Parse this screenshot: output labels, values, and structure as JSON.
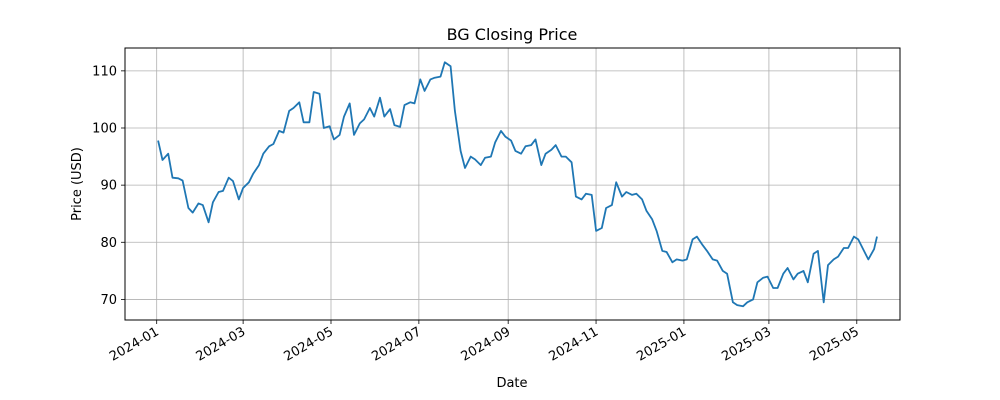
{
  "chart_data": {
    "type": "line",
    "title": "BG Closing Price",
    "xlabel": "Date",
    "ylabel": "Price (USD)",
    "grid": true,
    "xlim": [
      "2023-12-10",
      "2025-05-31"
    ],
    "ylim": [
      66.4,
      114.0
    ],
    "xticks": [
      "2024-01",
      "2024-03",
      "2024-05",
      "2024-07",
      "2024-09",
      "2024-11",
      "2025-01",
      "2025-03",
      "2025-05"
    ],
    "yticks": [
      70,
      80,
      90,
      100,
      110
    ],
    "color": "#1f77b4",
    "series": [
      {
        "x": [
          "2024-01-02",
          "2024-01-05",
          "2024-01-09",
          "2024-01-12",
          "2024-01-16",
          "2024-01-19",
          "2024-01-23",
          "2024-01-26",
          "2024-01-30",
          "2024-02-02",
          "2024-02-06",
          "2024-02-09",
          "2024-02-13",
          "2024-02-16",
          "2024-02-20",
          "2024-02-23",
          "2024-02-27",
          "2024-03-01",
          "2024-03-05",
          "2024-03-08",
          "2024-03-12",
          "2024-03-15",
          "2024-03-19",
          "2024-03-22",
          "2024-03-26",
          "2024-03-29",
          "2024-04-02",
          "2024-04-05",
          "2024-04-09",
          "2024-04-12",
          "2024-04-16",
          "2024-04-19",
          "2024-04-23",
          "2024-04-26",
          "2024-04-30",
          "2024-05-03",
          "2024-05-07",
          "2024-05-10",
          "2024-05-14",
          "2024-05-17",
          "2024-05-21",
          "2024-05-24",
          "2024-05-28",
          "2024-05-31",
          "2024-06-04",
          "2024-06-07",
          "2024-06-11",
          "2024-06-14",
          "2024-06-18",
          "2024-06-21",
          "2024-06-25",
          "2024-06-28",
          "2024-07-02",
          "2024-07-05",
          "2024-07-09",
          "2024-07-12",
          "2024-07-16",
          "2024-07-19",
          "2024-07-23",
          "2024-07-26",
          "2024-07-30",
          "2024-08-02",
          "2024-08-06",
          "2024-08-09",
          "2024-08-13",
          "2024-08-16",
          "2024-08-20",
          "2024-08-23",
          "2024-08-27",
          "2024-08-30",
          "2024-09-03",
          "2024-09-06",
          "2024-09-10",
          "2024-09-13",
          "2024-09-17",
          "2024-09-20",
          "2024-09-24",
          "2024-09-27",
          "2024-10-01",
          "2024-10-04",
          "2024-10-08",
          "2024-10-11",
          "2024-10-15",
          "2024-10-18",
          "2024-10-22",
          "2024-10-25",
          "2024-10-29",
          "2024-11-01",
          "2024-11-05",
          "2024-11-08",
          "2024-11-12",
          "2024-11-15",
          "2024-11-19",
          "2024-11-22",
          "2024-11-26",
          "2024-11-29",
          "2024-12-03",
          "2024-12-06",
          "2024-12-10",
          "2024-12-13",
          "2024-12-17",
          "2024-12-20",
          "2024-12-24",
          "2024-12-27",
          "2024-12-31",
          "2025-01-03",
          "2025-01-07",
          "2025-01-10",
          "2025-01-14",
          "2025-01-17",
          "2025-01-21",
          "2025-01-24",
          "2025-01-28",
          "2025-01-31",
          "2025-02-04",
          "2025-02-07",
          "2025-02-11",
          "2025-02-14",
          "2025-02-18",
          "2025-02-21",
          "2025-02-25",
          "2025-02-28",
          "2025-03-04",
          "2025-03-07",
          "2025-03-11",
          "2025-03-14",
          "2025-03-18",
          "2025-03-21",
          "2025-03-25",
          "2025-03-28",
          "2025-04-01",
          "2025-04-04",
          "2025-04-08",
          "2025-04-11",
          "2025-04-15",
          "2025-04-18",
          "2025-04-22",
          "2025-04-25",
          "2025-04-29",
          "2025-05-02",
          "2025-05-06",
          "2025-05-09",
          "2025-05-13",
          "2025-05-15"
        ],
        "values": [
          97.8,
          94.4,
          95.5,
          91.3,
          91.2,
          90.8,
          86.0,
          85.2,
          86.8,
          86.5,
          83.5,
          87.0,
          88.8,
          89.0,
          91.3,
          90.7,
          87.5,
          89.5,
          90.5,
          92.0,
          93.5,
          95.5,
          96.8,
          97.2,
          99.5,
          99.2,
          103.0,
          103.5,
          104.5,
          101.0,
          101.0,
          106.3,
          106.0,
          100.0,
          100.3,
          98.0,
          98.8,
          102.0,
          104.3,
          98.8,
          100.8,
          101.5,
          103.5,
          102.0,
          105.3,
          102.0,
          103.3,
          100.5,
          100.2,
          104.0,
          104.5,
          104.3,
          108.5,
          106.5,
          108.5,
          108.8,
          109.0,
          111.5,
          110.8,
          103.0,
          96.0,
          93.0,
          95.0,
          94.5,
          93.5,
          94.8,
          95.0,
          97.5,
          99.5,
          98.5,
          97.8,
          96.0,
          95.5,
          96.8,
          97.0,
          98.0,
          93.5,
          95.5,
          96.2,
          97.0,
          95.0,
          95.0,
          94.0,
          88.0,
          87.5,
          88.5,
          88.3,
          82.0,
          82.5,
          86.0,
          86.5,
          90.5,
          88.0,
          88.8,
          88.3,
          88.5,
          87.5,
          85.5,
          84.0,
          82.0,
          78.5,
          78.3,
          76.5,
          77.0,
          76.8,
          77.0,
          80.5,
          81.0,
          79.5,
          78.5,
          77.0,
          76.8,
          75.0,
          74.5,
          69.5,
          69.0,
          68.8,
          69.5,
          70.0,
          73.0,
          73.8,
          74.0,
          72.0,
          72.0,
          74.5,
          75.5,
          73.5,
          74.5,
          75.0,
          73.0,
          78.0,
          78.5,
          69.5,
          76.0,
          77.0,
          77.5,
          79.0,
          79.0,
          81.0,
          80.5,
          78.5,
          77.0,
          78.8,
          81.0
        ]
      }
    ]
  }
}
